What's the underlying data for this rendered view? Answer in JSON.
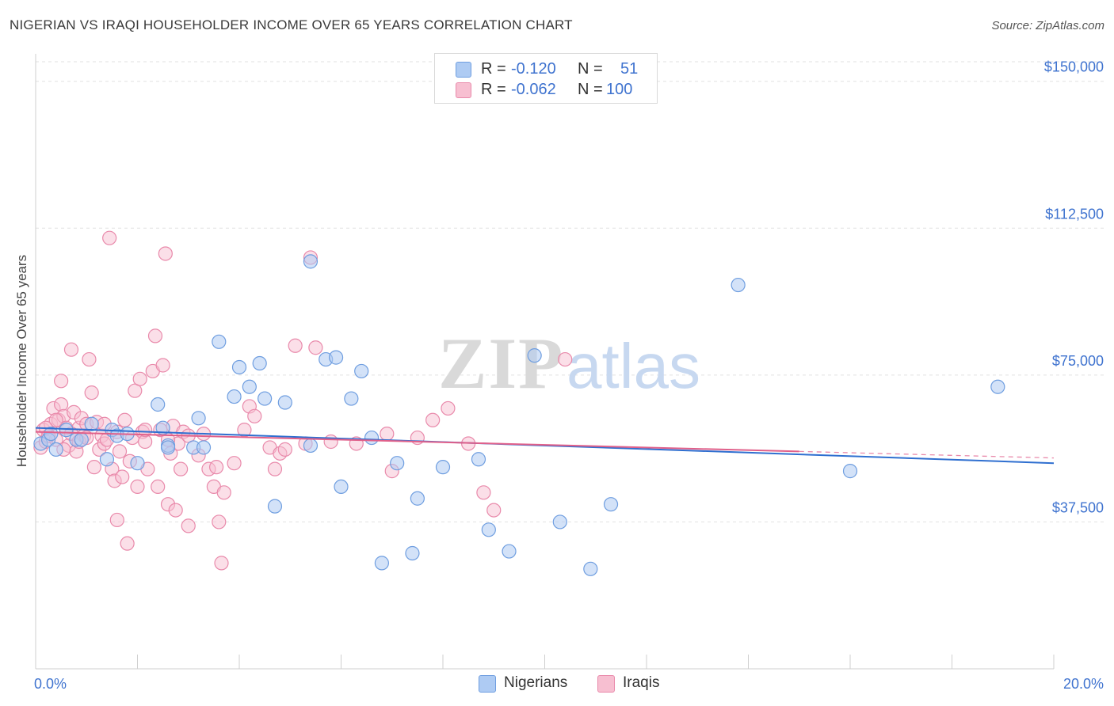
{
  "header": {
    "title": "NIGERIAN VS IRAQI HOUSEHOLDER INCOME OVER 65 YEARS CORRELATION CHART",
    "source": "Source: ZipAtlas.com"
  },
  "legend_top": {
    "rows": [
      {
        "r_label": "R =",
        "r_value": "-0.120",
        "n_label": "N =",
        "n_value": "51"
      },
      {
        "r_label": "R =",
        "r_value": "-0.062",
        "n_label": "N =",
        "n_value": "100"
      }
    ]
  },
  "legend_bottom": {
    "nigerians": "Nigerians",
    "iraqis": "Iraqis"
  },
  "watermark": {
    "zip": "ZIP",
    "atlas": "atlas"
  },
  "colors": {
    "nigerians_fill": "#aecbf3",
    "nigerians_stroke": "#6f9ee0",
    "nigerians_line": "#2f6fd0",
    "iraqis_fill": "#f7bfd1",
    "iraqis_stroke": "#e98aab",
    "iraqis_line": "#e0608a",
    "tick_label": "#3f73cf"
  },
  "chart_data": {
    "type": "scatter",
    "title": "NIGERIAN VS IRAQI HOUSEHOLDER INCOME OVER 65 YEARS CORRELATION CHART",
    "xlabel": "",
    "ylabel": "Householder Income Over 65 years",
    "xlim": [
      0,
      20
    ],
    "ylim": [
      0,
      155000
    ],
    "x_tick_labels": [
      "0.0%",
      "20.0%"
    ],
    "y_ticks": [
      37500,
      75000,
      112500,
      150000
    ],
    "y_tick_labels": [
      "$37,500",
      "$75,000",
      "$112,500",
      "$150,000"
    ],
    "grid": true,
    "legend_position": "top-center",
    "series": [
      {
        "name": "Nigerians",
        "R": -0.12,
        "N": 51,
        "trend": {
          "x": [
            0,
            20
          ],
          "y": [
            61500,
            52500
          ]
        },
        "points": [
          [
            0.1,
            57500
          ],
          [
            0.25,
            58500
          ],
          [
            0.4,
            56000
          ],
          [
            0.6,
            61000
          ],
          [
            0.8,
            58500
          ],
          [
            1.1,
            62500
          ],
          [
            1.4,
            53500
          ],
          [
            1.5,
            61000
          ],
          [
            1.6,
            59500
          ],
          [
            2.0,
            52500
          ],
          [
            2.4,
            67500
          ],
          [
            2.5,
            61500
          ],
          [
            2.6,
            57000
          ],
          [
            3.1,
            56500
          ],
          [
            3.2,
            64000
          ],
          [
            3.6,
            83500
          ],
          [
            3.9,
            69500
          ],
          [
            4.0,
            77000
          ],
          [
            4.2,
            72000
          ],
          [
            4.4,
            78000
          ],
          [
            4.5,
            69000
          ],
          [
            4.7,
            41500
          ],
          [
            4.9,
            68000
          ],
          [
            5.4,
            57000
          ],
          [
            5.7,
            79000
          ],
          [
            5.9,
            79500
          ],
          [
            6.0,
            46500
          ],
          [
            6.2,
            69000
          ],
          [
            6.4,
            76000
          ],
          [
            6.6,
            59000
          ],
          [
            6.8,
            27000
          ],
          [
            7.1,
            52500
          ],
          [
            7.4,
            29500
          ],
          [
            7.5,
            43500
          ],
          [
            8.0,
            51500
          ],
          [
            8.7,
            53500
          ],
          [
            8.9,
            35500
          ],
          [
            9.3,
            30000
          ],
          [
            9.8,
            80000
          ],
          [
            10.3,
            37500
          ],
          [
            10.9,
            25500
          ],
          [
            11.3,
            42000
          ],
          [
            13.8,
            98000
          ],
          [
            16.0,
            50500
          ],
          [
            18.9,
            72000
          ],
          [
            5.4,
            104000
          ],
          [
            0.9,
            58500
          ],
          [
            2.6,
            56500
          ],
          [
            1.8,
            60000
          ],
          [
            0.3,
            60000
          ],
          [
            3.3,
            56500
          ]
        ]
      },
      {
        "name": "Iraqis",
        "R": -0.062,
        "N": 100,
        "trend": {
          "x": [
            0,
            15
          ],
          "y": [
            60500,
            55500
          ]
        },
        "points": [
          [
            0.1,
            56500
          ],
          [
            0.15,
            61000
          ],
          [
            0.2,
            58000
          ],
          [
            0.3,
            62500
          ],
          [
            0.35,
            66500
          ],
          [
            0.4,
            58500
          ],
          [
            0.45,
            63500
          ],
          [
            0.5,
            67500
          ],
          [
            0.5,
            73500
          ],
          [
            0.55,
            64500
          ],
          [
            0.6,
            61500
          ],
          [
            0.65,
            57000
          ],
          [
            0.7,
            81500
          ],
          [
            0.75,
            65500
          ],
          [
            0.8,
            55500
          ],
          [
            0.85,
            61500
          ],
          [
            0.9,
            64000
          ],
          [
            0.95,
            59500
          ],
          [
            1.0,
            62500
          ],
          [
            1.05,
            79000
          ],
          [
            1.1,
            70500
          ],
          [
            1.15,
            51500
          ],
          [
            1.2,
            63000
          ],
          [
            1.25,
            56000
          ],
          [
            1.3,
            59500
          ],
          [
            1.35,
            57500
          ],
          [
            1.4,
            58500
          ],
          [
            1.45,
            110000
          ],
          [
            1.5,
            51000
          ],
          [
            1.55,
            48000
          ],
          [
            1.6,
            38000
          ],
          [
            1.65,
            55500
          ],
          [
            1.7,
            49000
          ],
          [
            1.75,
            63500
          ],
          [
            1.8,
            32000
          ],
          [
            1.85,
            53000
          ],
          [
            1.9,
            59000
          ],
          [
            1.95,
            71000
          ],
          [
            2.0,
            46500
          ],
          [
            2.05,
            74000
          ],
          [
            2.1,
            60500
          ],
          [
            2.15,
            58000
          ],
          [
            2.2,
            51000
          ],
          [
            2.3,
            76000
          ],
          [
            2.35,
            85000
          ],
          [
            2.4,
            46500
          ],
          [
            2.45,
            61000
          ],
          [
            2.5,
            77500
          ],
          [
            2.55,
            106000
          ],
          [
            2.6,
            42000
          ],
          [
            2.65,
            55000
          ],
          [
            2.7,
            62000
          ],
          [
            2.75,
            40500
          ],
          [
            2.8,
            57500
          ],
          [
            2.85,
            51000
          ],
          [
            2.9,
            60500
          ],
          [
            3.0,
            36500
          ],
          [
            3.2,
            54500
          ],
          [
            3.3,
            60000
          ],
          [
            3.4,
            51000
          ],
          [
            3.5,
            46500
          ],
          [
            3.55,
            51500
          ],
          [
            3.6,
            37500
          ],
          [
            3.65,
            27000
          ],
          [
            3.7,
            45000
          ],
          [
            3.9,
            52500
          ],
          [
            4.1,
            61000
          ],
          [
            4.2,
            67000
          ],
          [
            4.3,
            64500
          ],
          [
            4.6,
            56500
          ],
          [
            4.7,
            51000
          ],
          [
            4.8,
            55000
          ],
          [
            4.9,
            56000
          ],
          [
            5.1,
            82500
          ],
          [
            5.3,
            57500
          ],
          [
            5.4,
            105000
          ],
          [
            5.5,
            82000
          ],
          [
            5.8,
            58000
          ],
          [
            6.3,
            57500
          ],
          [
            6.9,
            60000
          ],
          [
            7.0,
            50500
          ],
          [
            7.5,
            59000
          ],
          [
            7.8,
            63500
          ],
          [
            8.1,
            66500
          ],
          [
            8.5,
            57500
          ],
          [
            8.8,
            45000
          ],
          [
            9.0,
            40500
          ],
          [
            10.4,
            79000
          ],
          [
            0.25,
            59500
          ],
          [
            0.55,
            56000
          ],
          [
            0.7,
            60000
          ],
          [
            1.35,
            62500
          ],
          [
            2.15,
            61000
          ],
          [
            3.0,
            59500
          ],
          [
            0.4,
            63500
          ],
          [
            0.85,
            58000
          ],
          [
            1.6,
            60500
          ],
          [
            0.2,
            61500
          ],
          [
            1.0,
            59000
          ],
          [
            2.6,
            58500
          ]
        ]
      }
    ]
  }
}
